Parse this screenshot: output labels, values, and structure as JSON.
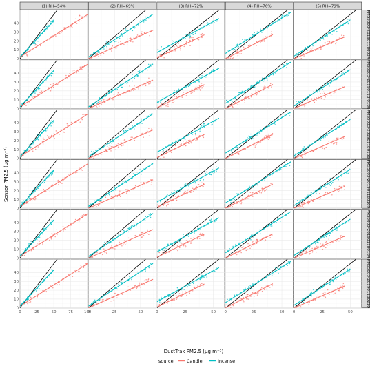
{
  "chart_data": {
    "type": "scatter",
    "title": "",
    "xlabel": "DustTrak PM2.5 (μg m⁻³)",
    "ylabel": "Sensor PM2.5 (μg m⁻³)",
    "legend": {
      "title": "source",
      "position": "bottom",
      "entries": [
        "Candle",
        "Incense"
      ]
    },
    "colors": {
      "Candle": "#F8766D",
      "Incense": "#00BFC4",
      "reference": "#000000"
    },
    "columns": [
      "(1) RH=54%",
      "(2) RH=69%",
      "(3) RH=72%",
      "(4) RH=76%",
      "(5) RH=79%"
    ],
    "rows": [
      "PMS5003-201901180034",
      "PMS5003-20190118 0180",
      "PMS5003-201901180168",
      "PMS5003-201901180169",
      "PMS5003-201901180184",
      "PMS5003-201901180210"
    ],
    "column_xlim": [
      [
        0,
        100
      ],
      [
        0,
        65
      ],
      [
        0,
        60
      ],
      [
        0,
        60
      ],
      [
        0,
        60
      ]
    ],
    "ylim": [
      0,
      55
    ],
    "x_ticks": [
      [
        0,
        25,
        50,
        75,
        100
      ],
      [
        0,
        25,
        50
      ],
      [
        0,
        25,
        50
      ],
      [
        0,
        25,
        50
      ],
      [
        0,
        25,
        50
      ]
    ],
    "y_ticks": [
      0,
      10,
      20,
      30,
      40
    ],
    "reference_line": "1:1",
    "grid": true,
    "fits_by_column": {
      "(1) RH=54%": {
        "Candle": {
          "slope": 0.48,
          "intercept": 2,
          "x_max": 100
        },
        "Incense": {
          "slope": 0.82,
          "intercept": 2,
          "x_max": 50
        }
      },
      "(2) RH=69%": {
        "Candle": {
          "slope": 0.52,
          "intercept": 0,
          "x_max": 62
        },
        "Incense": {
          "slope": 0.78,
          "intercept": 2,
          "x_max": 62
        }
      },
      "(3) RH=72%": {
        "Candle": {
          "slope": 0.62,
          "intercept": 1,
          "x_max": 42
        },
        "Incense": {
          "slope": 0.7,
          "intercept": 7,
          "x_max": 55
        }
      },
      "(4) RH=76%": {
        "Candle": {
          "slope": 0.65,
          "intercept": 0,
          "x_max": 42
        },
        "Incense": {
          "slope": 0.8,
          "intercept": 6,
          "x_max": 58
        }
      },
      "(5) RH=79%": {
        "Candle": {
          "slope": 0.55,
          "intercept": 0,
          "x_max": 45
        },
        "Incense": {
          "slope": 0.82,
          "intercept": 3,
          "x_max": 50
        }
      }
    }
  }
}
